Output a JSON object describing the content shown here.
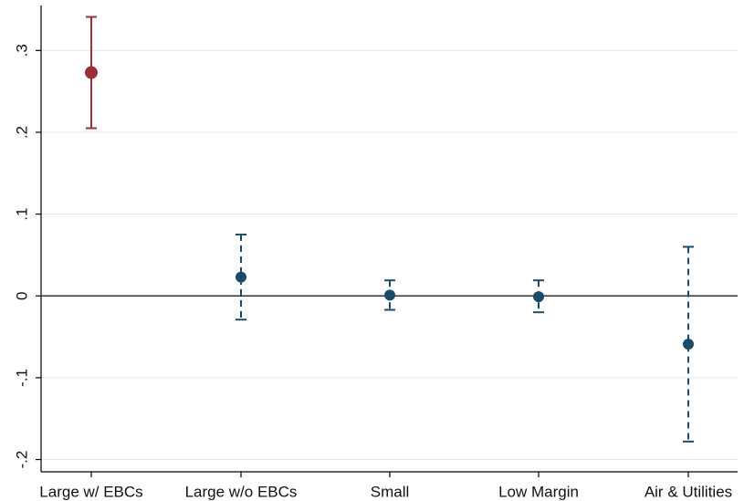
{
  "chart_data": {
    "type": "scatter",
    "title": "",
    "xlabel": "",
    "ylabel": "",
    "ylim": [
      -0.215,
      0.355
    ],
    "yticks": [
      {
        "value": -0.2,
        "label": "-.2"
      },
      {
        "value": -0.1,
        "label": "-.1"
      },
      {
        "value": 0,
        "label": "0"
      },
      {
        "value": 0.1,
        "label": ".1"
      },
      {
        "value": 0.2,
        "label": ".2"
      },
      {
        "value": 0.3,
        "label": ".3"
      }
    ],
    "grid": true,
    "reference_line": 0,
    "categories": [
      "Large w/ EBCs",
      "Large w/o EBCs",
      "Small",
      "Low Margin",
      "Air & Utilities"
    ],
    "points": [
      {
        "category": "Large w/ EBCs",
        "estimate": 0.273,
        "ci_low": 0.205,
        "ci_high": 0.341,
        "color": "#9b2f33",
        "dashed": false
      },
      {
        "category": "Large w/o EBCs",
        "estimate": 0.023,
        "ci_low": -0.029,
        "ci_high": 0.075,
        "color": "#1b4b6b",
        "dashed": true
      },
      {
        "category": "Small",
        "estimate": 0.001,
        "ci_low": -0.017,
        "ci_high": 0.019,
        "color": "#1b4b6b",
        "dashed": true
      },
      {
        "category": "Low Margin",
        "estimate": -0.001,
        "ci_low": -0.02,
        "ci_high": 0.019,
        "color": "#1b4b6b",
        "dashed": true
      },
      {
        "category": "Air & Utilities",
        "estimate": -0.059,
        "ci_low": -0.178,
        "ci_high": 0.06,
        "color": "#1b4b6b",
        "dashed": true
      }
    ]
  }
}
